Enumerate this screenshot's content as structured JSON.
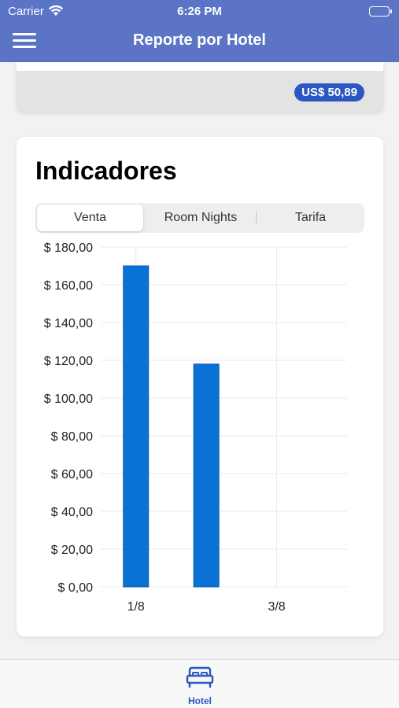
{
  "status_bar": {
    "carrier": "Carrier",
    "time": "6:26 PM"
  },
  "header": {
    "title": "Reporte por Hotel"
  },
  "previous_card": {
    "price": "US$ 50,89"
  },
  "indicadores": {
    "title": "Indicadores",
    "tabs": [
      {
        "label": "Venta",
        "selected": true
      },
      {
        "label": "Room Nights",
        "selected": false
      },
      {
        "label": "Tarifa",
        "selected": false
      }
    ]
  },
  "chart_data": {
    "type": "bar",
    "x_tick_labels": [
      "1/8",
      "3/8"
    ],
    "y_tick_labels": [
      "$ 180,00",
      "$ 160,00",
      "$ 140,00",
      "$ 120,00",
      "$ 100,00",
      "$ 80,00",
      "$ 60,00",
      "$ 40,00",
      "$ 20,00",
      "$ 0,00"
    ],
    "x": [
      1,
      2
    ],
    "values": [
      170,
      118
    ],
    "ylim": [
      0,
      180
    ],
    "xlim": [
      0.5,
      4
    ],
    "grid": true,
    "bar_color": "#0a72d6"
  },
  "tab_bar": {
    "items": [
      {
        "label": "Hotel",
        "icon": "bed-icon",
        "selected": true
      }
    ]
  },
  "colors": {
    "header": "#5b74c6",
    "accent": "#2c56c1",
    "bar": "#0a72d6"
  }
}
